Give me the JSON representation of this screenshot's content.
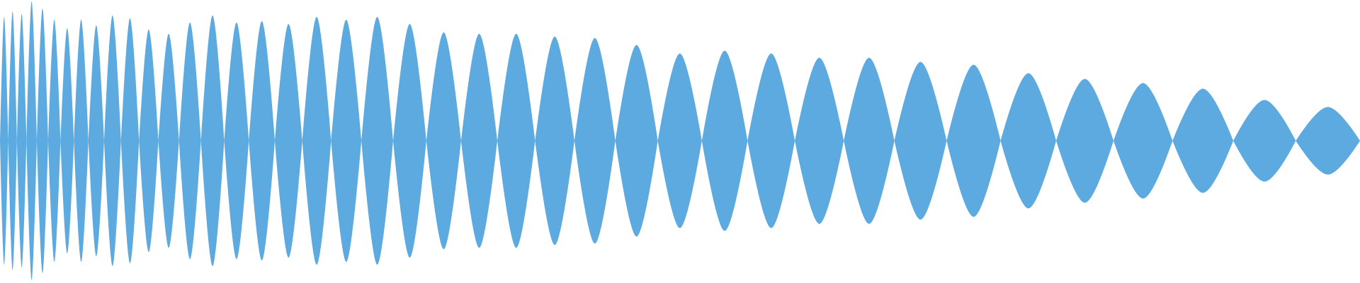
{
  "waveform": {
    "fill_color": "#5DAAE0",
    "background_color": "#ffffff",
    "lobe_count": 41,
    "amplitude_profile": [
      0.88,
      0.92,
      0.9,
      0.99,
      0.94,
      0.86,
      0.8,
      0.86,
      0.82,
      0.89,
      0.87,
      0.79,
      0.76,
      0.84,
      0.89,
      0.84,
      0.85,
      0.83,
      0.88,
      0.86,
      0.88,
      0.83,
      0.77,
      0.76,
      0.76,
      0.74,
      0.73,
      0.68,
      0.62,
      0.64,
      0.62,
      0.59,
      0.59,
      0.56,
      0.54,
      0.48,
      0.44,
      0.41,
      0.37,
      0.29,
      0.24
    ]
  }
}
